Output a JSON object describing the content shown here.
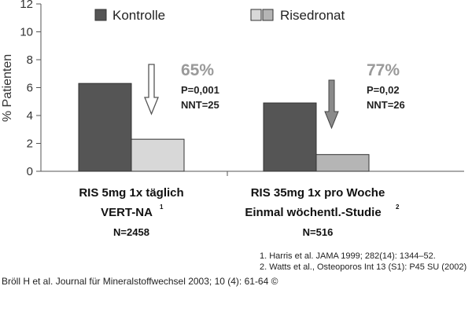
{
  "chart_data": {
    "type": "bar",
    "ylabel": "% Patienten",
    "ylim": [
      0,
      12
    ],
    "yticks": [
      0,
      2,
      4,
      6,
      8,
      10,
      12
    ],
    "legend": [
      {
        "name": "Kontrolle",
        "color": "#555555"
      },
      {
        "name": "Risedronat",
        "color": "#d8d8d8"
      }
    ],
    "groups": [
      {
        "title": "RIS 5mg 1x täglich",
        "subtitle": "VERT-NA",
        "subtitle_sup": "1",
        "n": "N=2458",
        "reduction": "65%",
        "p": "P=0,001",
        "nnt": "NNT=25",
        "values": [
          6.3,
          2.3
        ],
        "colors": [
          "#555555",
          "#d8d8d8"
        ]
      },
      {
        "title": "RIS 35mg 1x pro Woche",
        "subtitle": "Einmal wöchentl.-Studie",
        "subtitle_sup": "2",
        "n": "N=516",
        "reduction": "77%",
        "p": "P=0,02",
        "nnt": "NNT=26",
        "values": [
          4.9,
          1.2
        ],
        "colors": [
          "#555555",
          "#b5b5b5"
        ]
      }
    ],
    "legend_second_swatch": "#b5b5b5"
  },
  "references": [
    "1. Harris et al. JAMA 1999; 282(14): 1344–52.",
    "2. Watts et al., Osteoporos Int 13 (S1): P45 SU (2002)"
  ],
  "credit": "Bröll H et al. Journal für Mineralstoffwechsel 2003; 10 (4): 61-64 ©"
}
